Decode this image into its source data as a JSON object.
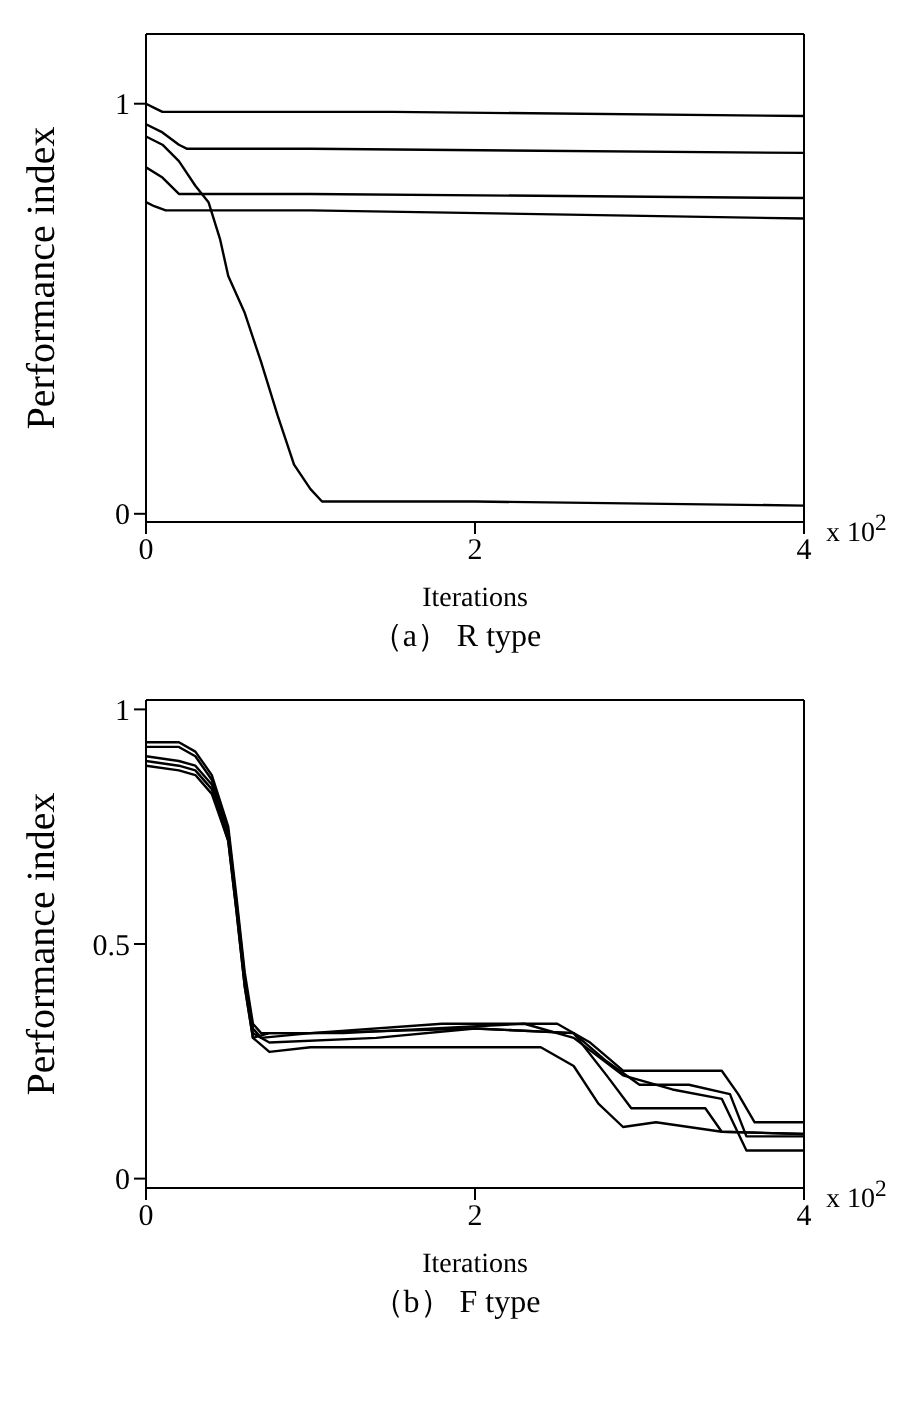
{
  "chart_data": [
    {
      "type": "line",
      "title": "（a） R type",
      "xlabel": "Iterations",
      "ylabel": "Performance index",
      "annotations": [
        "x 10$^{2}$"
      ],
      "xlim": [
        0,
        4
      ],
      "xticks": [
        0,
        2,
        4
      ],
      "ylim": [
        -0.02,
        1.17
      ],
      "yticks": [
        0,
        1
      ],
      "marker": "none",
      "line_style": "solid",
      "series": [
        {
          "color": "#000000",
          "x": [
            0,
            0.05,
            0.1,
            1.5,
            4
          ],
          "values": [
            1.0,
            0.99,
            0.98,
            0.98,
            0.97
          ]
        },
        {
          "color": "#000000",
          "x": [
            0,
            0.1,
            0.2,
            0.25,
            1.0,
            4
          ],
          "values": [
            0.95,
            0.93,
            0.9,
            0.89,
            0.89,
            0.88
          ]
        },
        {
          "color": "#000000",
          "x": [
            0,
            0.1,
            0.2,
            0.3,
            0.38,
            0.45,
            0.5,
            0.6,
            0.7,
            0.8,
            0.9,
            1.0,
            1.07,
            2.0,
            4
          ],
          "values": [
            0.92,
            0.9,
            0.86,
            0.8,
            0.76,
            0.67,
            0.58,
            0.49,
            0.37,
            0.24,
            0.12,
            0.06,
            0.03,
            0.03,
            0.02
          ]
        },
        {
          "color": "#000000",
          "x": [
            0,
            0.1,
            0.2,
            0.35,
            1.0,
            4
          ],
          "values": [
            0.845,
            0.82,
            0.78,
            0.78,
            0.78,
            0.77
          ]
        },
        {
          "color": "#000000",
          "x": [
            0,
            0.05,
            0.12,
            0.2,
            1.0,
            4
          ],
          "values": [
            0.76,
            0.75,
            0.74,
            0.74,
            0.74,
            0.72
          ]
        }
      ]
    },
    {
      "type": "line",
      "title": "（b） F type",
      "xlabel": "Iterations",
      "ylabel": "Performance index",
      "annotations": [
        "x 10$^{2}$"
      ],
      "xlim": [
        0,
        4
      ],
      "xticks": [
        0,
        2,
        4
      ],
      "ylim": [
        -0.02,
        1.02
      ],
      "yticks": [
        0,
        0.5,
        1
      ],
      "marker": "none",
      "line_style": "solid",
      "series": [
        {
          "color": "#000000",
          "x": [
            0,
            0.2,
            0.3,
            0.4,
            0.5,
            0.55,
            0.6,
            0.65,
            0.7,
            1.0,
            1.8,
            2.5,
            2.7,
            2.9,
            3.5,
            3.6,
            3.7,
            4
          ],
          "values": [
            0.93,
            0.93,
            0.91,
            0.86,
            0.75,
            0.6,
            0.44,
            0.33,
            0.31,
            0.31,
            0.33,
            0.33,
            0.29,
            0.23,
            0.23,
            0.18,
            0.12,
            0.12
          ]
        },
        {
          "color": "#000000",
          "x": [
            0,
            0.2,
            0.3,
            0.4,
            0.5,
            0.55,
            0.6,
            0.65,
            0.7,
            1.0,
            2.0,
            2.6,
            2.8,
            3.0,
            3.3,
            3.55,
            3.65,
            4
          ],
          "values": [
            0.92,
            0.92,
            0.9,
            0.85,
            0.74,
            0.59,
            0.43,
            0.32,
            0.3,
            0.31,
            0.32,
            0.31,
            0.25,
            0.2,
            0.2,
            0.18,
            0.09,
            0.09
          ]
        },
        {
          "color": "#000000",
          "x": [
            0,
            0.2,
            0.3,
            0.4,
            0.5,
            0.55,
            0.6,
            0.65,
            0.75,
            1.4,
            2.0,
            2.6,
            2.8,
            2.95,
            3.4,
            3.5,
            4
          ],
          "values": [
            0.9,
            0.89,
            0.88,
            0.84,
            0.73,
            0.58,
            0.42,
            0.31,
            0.29,
            0.3,
            0.32,
            0.31,
            0.22,
            0.15,
            0.15,
            0.1,
            0.095
          ]
        },
        {
          "color": "#000000",
          "x": [
            0,
            0.2,
            0.3,
            0.4,
            0.5,
            0.55,
            0.6,
            0.65,
            0.75,
            1.0,
            2.4,
            2.6,
            2.75,
            2.9,
            3.1,
            3.5,
            4
          ],
          "values": [
            0.89,
            0.88,
            0.87,
            0.83,
            0.72,
            0.57,
            0.41,
            0.3,
            0.27,
            0.28,
            0.28,
            0.24,
            0.16,
            0.11,
            0.12,
            0.1,
            0.095
          ]
        },
        {
          "color": "#000000",
          "x": [
            0,
            0.2,
            0.3,
            0.4,
            0.5,
            0.55,
            0.6,
            0.65,
            0.75,
            1.2,
            2.3,
            2.6,
            2.9,
            3.2,
            3.5,
            3.65,
            4
          ],
          "values": [
            0.88,
            0.87,
            0.86,
            0.82,
            0.72,
            0.57,
            0.41,
            0.3,
            0.31,
            0.31,
            0.33,
            0.3,
            0.22,
            0.19,
            0.17,
            0.06,
            0.06
          ]
        }
      ]
    }
  ]
}
